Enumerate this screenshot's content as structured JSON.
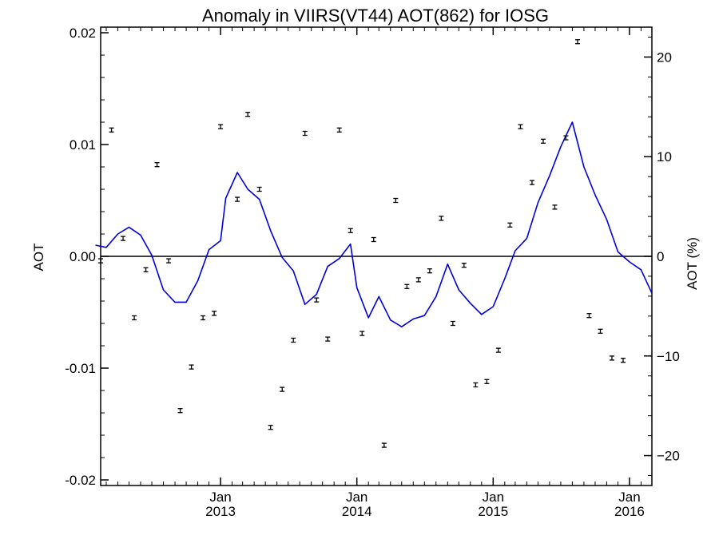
{
  "chart_data": {
    "type": "line",
    "title": "Anomaly in VIIRS(VT44) AOT(862) for IOSG",
    "ylabel": "AOT",
    "ylabel_right": "AOT (%)",
    "xlim": [
      "2012-02-15",
      "2016-03-01"
    ],
    "ylim": [
      -0.0205,
      0.0205
    ],
    "y2lim": [
      -23.0,
      23.0
    ],
    "grid": false,
    "zero_line": true,
    "left_ticks": [
      {
        "value": -0.02,
        "label": "-0.02"
      },
      {
        "value": -0.01,
        "label": "-0.01"
      },
      {
        "value": 0.0,
        "label": "0.00"
      },
      {
        "value": 0.01,
        "label": "0.01"
      },
      {
        "value": 0.02,
        "label": "0.02"
      }
    ],
    "right_ticks": [
      {
        "value": -20,
        "label": "−20"
      },
      {
        "value": -10,
        "label": "−10"
      },
      {
        "value": 0,
        "label": "0"
      },
      {
        "value": 10,
        "label": "10"
      },
      {
        "value": 20,
        "label": "20"
      }
    ],
    "x_ticks": [
      {
        "date": "2013-01-01",
        "month": "Jan",
        "year": "2013"
      },
      {
        "date": "2014-01-01",
        "month": "Jan",
        "year": "2014"
      },
      {
        "date": "2015-01-01",
        "month": "Jan",
        "year": "2015"
      },
      {
        "date": "2016-01-01",
        "month": "Jan",
        "year": "2016"
      }
    ],
    "series": [
      {
        "kind": "errorbar_points",
        "color": "#000000",
        "points": [
          {
            "x": "2012-02-15",
            "y": -0.0004
          },
          {
            "x": "2012-03-15",
            "y": 0.0113
          },
          {
            "x": "2012-04-15",
            "y": 0.0016
          },
          {
            "x": "2012-05-15",
            "y": -0.0055
          },
          {
            "x": "2012-06-15",
            "y": -0.0012
          },
          {
            "x": "2012-07-15",
            "y": 0.0082
          },
          {
            "x": "2012-08-15",
            "y": -0.0004
          },
          {
            "x": "2012-09-15",
            "y": -0.0138
          },
          {
            "x": "2012-10-15",
            "y": -0.0099
          },
          {
            "x": "2012-11-15",
            "y": -0.0055
          },
          {
            "x": "2012-12-15",
            "y": -0.0051
          },
          {
            "x": "2013-01-01",
            "y": 0.0116
          },
          {
            "x": "2013-02-15",
            "y": 0.0051
          },
          {
            "x": "2013-03-15",
            "y": 0.0127
          },
          {
            "x": "2013-04-15",
            "y": 0.006
          },
          {
            "x": "2013-05-15",
            "y": -0.0153
          },
          {
            "x": "2013-06-15",
            "y": -0.0119
          },
          {
            "x": "2013-07-15",
            "y": -0.0075
          },
          {
            "x": "2013-08-15",
            "y": 0.011
          },
          {
            "x": "2013-09-15",
            "y": -0.0039
          },
          {
            "x": "2013-10-15",
            "y": -0.0074
          },
          {
            "x": "2013-11-15",
            "y": 0.0113
          },
          {
            "x": "2013-12-15",
            "y": 0.0023
          },
          {
            "x": "2014-01-15",
            "y": -0.0069
          },
          {
            "x": "2014-02-15",
            "y": 0.0015
          },
          {
            "x": "2014-03-15",
            "y": -0.0169
          },
          {
            "x": "2014-04-15",
            "y": 0.005
          },
          {
            "x": "2014-05-15",
            "y": -0.0027
          },
          {
            "x": "2014-06-15",
            "y": -0.0021
          },
          {
            "x": "2014-07-15",
            "y": -0.0013
          },
          {
            "x": "2014-08-15",
            "y": 0.0034
          },
          {
            "x": "2014-09-15",
            "y": -0.006
          },
          {
            "x": "2014-10-15",
            "y": -0.0008
          },
          {
            "x": "2014-11-15",
            "y": -0.0115
          },
          {
            "x": "2014-12-15",
            "y": -0.0112
          },
          {
            "x": "2015-01-15",
            "y": -0.0084
          },
          {
            "x": "2015-02-15",
            "y": 0.0028
          },
          {
            "x": "2015-03-15",
            "y": 0.0116
          },
          {
            "x": "2015-04-15",
            "y": 0.0066
          },
          {
            "x": "2015-05-15",
            "y": 0.0103
          },
          {
            "x": "2015-06-15",
            "y": 0.0044
          },
          {
            "x": "2015-07-15",
            "y": 0.0106
          },
          {
            "x": "2015-08-15",
            "y": 0.0192
          },
          {
            "x": "2015-09-15",
            "y": -0.0053
          },
          {
            "x": "2015-10-15",
            "y": -0.0067
          },
          {
            "x": "2015-11-15",
            "y": -0.0091
          },
          {
            "x": "2015-12-15",
            "y": -0.0093
          }
        ]
      },
      {
        "kind": "line",
        "color": "#0000dd",
        "points": [
          {
            "x": "2012-02-01",
            "y": 0.001
          },
          {
            "x": "2012-03-01",
            "y": 0.0008
          },
          {
            "x": "2012-04-01",
            "y": 0.002
          },
          {
            "x": "2012-05-01",
            "y": 0.0026
          },
          {
            "x": "2012-06-01",
            "y": 0.0019
          },
          {
            "x": "2012-07-01",
            "y": 0.0001
          },
          {
            "x": "2012-08-01",
            "y": -0.003
          },
          {
            "x": "2012-09-01",
            "y": -0.0041
          },
          {
            "x": "2012-10-01",
            "y": -0.0041
          },
          {
            "x": "2012-11-01",
            "y": -0.0022
          },
          {
            "x": "2012-12-01",
            "y": 0.0006
          },
          {
            "x": "2013-01-01",
            "y": 0.0014
          },
          {
            "x": "2013-01-15",
            "y": 0.0052
          },
          {
            "x": "2013-02-15",
            "y": 0.0075
          },
          {
            "x": "2013-03-15",
            "y": 0.006
          },
          {
            "x": "2013-04-15",
            "y": 0.0051
          },
          {
            "x": "2013-05-15",
            "y": 0.0023
          },
          {
            "x": "2013-06-15",
            "y": -0.0001
          },
          {
            "x": "2013-07-15",
            "y": -0.0013
          },
          {
            "x": "2013-08-15",
            "y": -0.0043
          },
          {
            "x": "2013-09-15",
            "y": -0.0034
          },
          {
            "x": "2013-10-15",
            "y": -0.0009
          },
          {
            "x": "2013-11-15",
            "y": -0.0002
          },
          {
            "x": "2013-12-15",
            "y": 0.0011
          },
          {
            "x": "2014-01-01",
            "y": -0.0028
          },
          {
            "x": "2014-02-01",
            "y": -0.0055
          },
          {
            "x": "2014-03-01",
            "y": -0.0036
          },
          {
            "x": "2014-04-01",
            "y": -0.0057
          },
          {
            "x": "2014-05-01",
            "y": -0.0063
          },
          {
            "x": "2014-06-01",
            "y": -0.0056
          },
          {
            "x": "2014-07-01",
            "y": -0.0053
          },
          {
            "x": "2014-08-01",
            "y": -0.0036
          },
          {
            "x": "2014-09-01",
            "y": -0.0007
          },
          {
            "x": "2014-10-01",
            "y": -0.003
          },
          {
            "x": "2014-11-01",
            "y": -0.0042
          },
          {
            "x": "2014-12-01",
            "y": -0.0052
          },
          {
            "x": "2015-01-01",
            "y": -0.0045
          },
          {
            "x": "2015-02-01",
            "y": -0.002
          },
          {
            "x": "2015-03-01",
            "y": 0.0005
          },
          {
            "x": "2015-04-01",
            "y": 0.0016
          },
          {
            "x": "2015-05-01",
            "y": 0.0048
          },
          {
            "x": "2015-06-01",
            "y": 0.0072
          },
          {
            "x": "2015-07-01",
            "y": 0.0098
          },
          {
            "x": "2015-08-01",
            "y": 0.012
          },
          {
            "x": "2015-09-01",
            "y": 0.008
          },
          {
            "x": "2015-10-01",
            "y": 0.0055
          },
          {
            "x": "2015-11-01",
            "y": 0.0033
          },
          {
            "x": "2015-12-01",
            "y": 0.0004
          },
          {
            "x": "2016-01-01",
            "y": -0.0005
          },
          {
            "x": "2016-02-01",
            "y": -0.0012
          },
          {
            "x": "2016-03-01",
            "y": -0.0033
          }
        ]
      }
    ]
  }
}
